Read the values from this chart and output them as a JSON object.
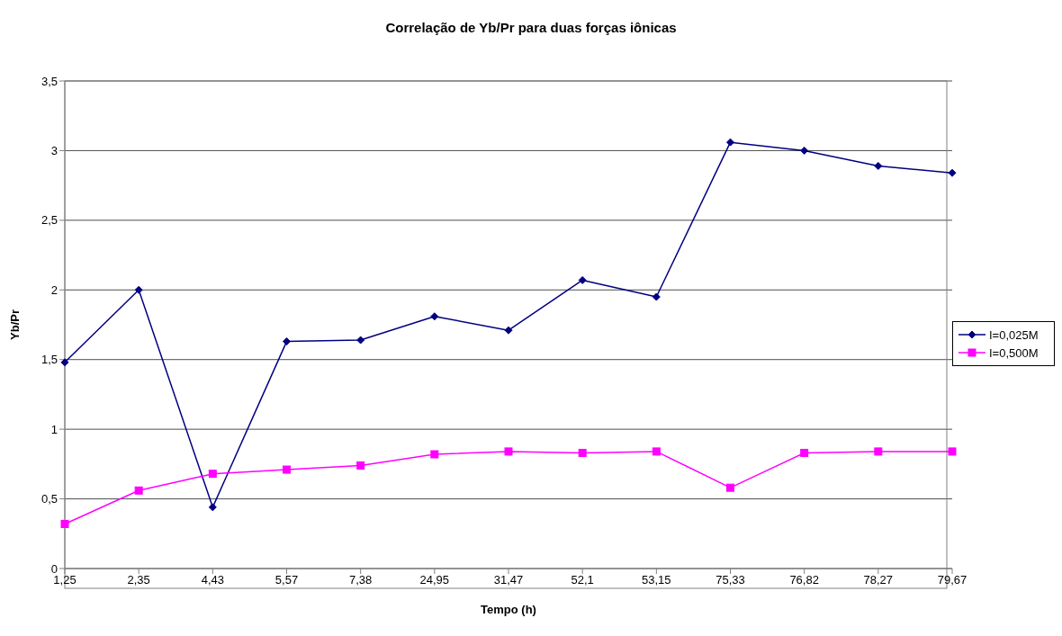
{
  "chart_data": {
    "type": "line",
    "title": "Correlação de Yb/Pr para duas forças iônicas",
    "xlabel": "Tempo (h)",
    "ylabel": "Yb/Pr",
    "categories": [
      "1,25",
      "2,35",
      "4,43",
      "5,57",
      "7,38",
      "24,95",
      "31,47",
      "52,1",
      "53,15",
      "75,33",
      "76,82",
      "78,27",
      "79,67"
    ],
    "series": [
      {
        "name": "I=0,025M",
        "color": "#000080",
        "marker": "diamond",
        "values": [
          1.48,
          2.0,
          0.44,
          1.63,
          1.64,
          1.81,
          1.71,
          2.07,
          1.95,
          3.06,
          3.0,
          2.89,
          2.84
        ]
      },
      {
        "name": "I=0,500M",
        "color": "#ff00ff",
        "marker": "square",
        "values": [
          0.32,
          0.56,
          0.68,
          0.71,
          0.74,
          0.82,
          0.84,
          0.83,
          0.84,
          0.58,
          0.83,
          0.84,
          0.84
        ]
      }
    ],
    "ylim": [
      0,
      3.5
    ],
    "yticks": [
      {
        "value": 0,
        "label": "0"
      },
      {
        "value": 0.5,
        "label": "0,5"
      },
      {
        "value": 1,
        "label": "1"
      },
      {
        "value": 1.5,
        "label": "1,5"
      },
      {
        "value": 2,
        "label": "2"
      },
      {
        "value": 2.5,
        "label": "2,5"
      },
      {
        "value": 3,
        "label": "3"
      },
      {
        "value": 3.5,
        "label": "3,5"
      }
    ],
    "grid": "y",
    "legend": "right",
    "line_style": "solid"
  }
}
